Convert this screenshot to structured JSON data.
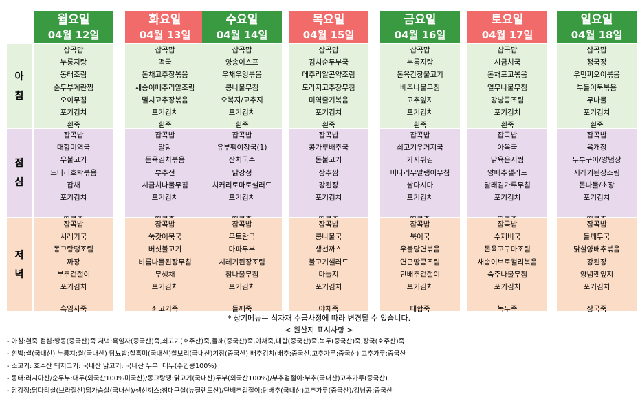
{
  "colors": {
    "weekday_header": "#3a9a42",
    "weekend_header": "#f26b6b",
    "breakfast_bg": "#e4f2dd",
    "lunch_bg": "#e8d9ec",
    "dinner_bg": "#fbdcc7"
  },
  "days": [
    {
      "name": "월요일",
      "date": "04월 12일",
      "weekend": false,
      "breakfast": [
        "잡곡밥",
        "누룽지탕",
        "동태조림",
        "순두부계란찜",
        "오이무침",
        "포기김치",
        "흰죽"
      ],
      "lunch": [
        "잡곡밥",
        "대합미역국",
        "우불고기",
        "느타리호박볶음",
        "잡채",
        "포기김치",
        "땅콩죽"
      ],
      "dinner": [
        "잡곡밥",
        "시래기국",
        "동그랑땡조림",
        "짜장",
        "부추겉절이",
        "포기김치",
        "흑임자죽"
      ]
    },
    {
      "name": "화요일",
      "date": "04월 13일",
      "weekend": true,
      "breakfast": [
        "잡곡밥",
        "떡국",
        "돈채고추장볶음",
        "새송이메추리알조림",
        "멸치고추장볶음",
        "포기김치",
        "흰죽"
      ],
      "lunch": [
        "잡곡밥",
        "알탕",
        "돈육김치볶음",
        "부추전",
        "시금치나물무침",
        "포기김치",
        "땅콩죽"
      ],
      "dinner": [
        "잡곡밥",
        "쑥갓어묵국",
        "버섯불고기",
        "비름나물된장무침",
        "무생채",
        "포기김치",
        "쇠고기죽"
      ]
    },
    {
      "name": "수요일",
      "date": "04월 14일",
      "weekend": false,
      "breakfast": [
        "잡곡밥",
        "양송이스프",
        "우채우엉볶음",
        "콩나물무침",
        "오복지/고추지",
        "포기김치",
        "흰죽"
      ],
      "lunch": [
        "잡곡밥",
        "유부팽이장국(1)",
        "잔치국수",
        "닭강정",
        "치커리토마토샐러드",
        "포기김치",
        "땅콩죽"
      ],
      "dinner": [
        "잡곡밥",
        "우토란국",
        "마파두부",
        "시레기된장조림",
        "참나물무침",
        "포기김치",
        "들깨죽"
      ]
    },
    {
      "name": "목요일",
      "date": "04월 15일",
      "weekend": true,
      "breakfast": [
        "잡곡밥",
        "김치순두부국",
        "메추리알곤약조림",
        "도라지고추장무침",
        "미역줄기볶음",
        "포기김치",
        "흰죽"
      ],
      "lunch": [
        "잡곡밥",
        "콩가루배추국",
        "돈불고기",
        "상추쌈",
        "강된장",
        "포기김치",
        "땅콩죽"
      ],
      "dinner": [
        "잡곡밥",
        "콩나물국",
        "생선까스",
        "불고기샐러드",
        "마늘지",
        "포기김치",
        "야채죽"
      ]
    },
    {
      "name": "금요일",
      "date": "04월 16일",
      "weekend": false,
      "breakfast": [
        "잡곡밥",
        "누룽지탕",
        "돈육간장불고기",
        "배추나물무침",
        "고추잎지",
        "포기김치",
        "흰죽"
      ],
      "lunch": [
        "잡곡밥",
        "쇠고기우거지국",
        "가지튀김",
        "미나리무말랭이무침",
        "쌈다시마",
        "포기김치",
        "땅콩죽"
      ],
      "dinner": [
        "잡곡밥",
        "북어국",
        "우불당면볶음",
        "연근땅콩조림",
        "단배추겉절이",
        "포기김치",
        "대합죽"
      ]
    },
    {
      "name": "토요일",
      "date": "04월 17일",
      "weekend": true,
      "breakfast": [
        "잡곡밥",
        "시금치국",
        "돈채표고볶음",
        "열무나물무침",
        "강낭콩조림",
        "포기김치",
        "흰죽"
      ],
      "lunch": [
        "잡곡밥",
        "아욱국",
        "닭육은지찜",
        "양배추샐러드",
        "달래김가루무침",
        "포기김치",
        "땅콩죽"
      ],
      "dinner": [
        "잡곡밥",
        "수제비국",
        "돈육고구마조림",
        "새송이브로컬리볶음",
        "숙주나물무침",
        "포기김치",
        "녹두죽"
      ]
    },
    {
      "name": "일요일",
      "date": "04월 18일",
      "weekend": false,
      "breakfast": [
        "잡곡밥",
        "청국장",
        "우민찌오이볶음",
        "부들어묵볶음",
        "무나물",
        "포기김치",
        "흰죽"
      ],
      "lunch": [
        "잡곡밥",
        "육개장",
        "두부구이/양념장",
        "시래기된장조림",
        "돈나물/초장",
        "포기김치",
        "땅콩죽"
      ],
      "dinner": [
        "잡곡밥",
        "들깨무국",
        "닭살양배추볶음",
        "강된장",
        "양념깻잎지",
        "포기김치",
        "장국죽"
      ]
    }
  ],
  "meals": [
    {
      "key": "breakfast",
      "chars": [
        "아",
        "침"
      ]
    },
    {
      "key": "lunch",
      "chars": [
        "점",
        "심"
      ]
    },
    {
      "key": "dinner",
      "chars": [
        "저",
        "녁"
      ]
    }
  ],
  "notice": "* 상기메뉴는 식자재 수급사정에 따라 변경될 수 있습니다.",
  "origin_title": "< 원산지 표시사항 >",
  "origin_lines": [
    "- 아침:흰죽  점심:땅콩(중국산)죽  저녁:흑임자(중국산)죽,쇠고기(호주산)죽,들깨(중국산)죽,야채죽,대합(중국산)죽,녹두(중국산)죽,장국(호주산)죽",
    "- 흰밥:쌀(국내산)  누룽지:쌀(국내산)  당뇨밥:찰흑미(국내산)찰보리(국내산)기장(중국산)  배추김치(배추:중국산,고추가루:중국산)  고추가루:중국산",
    "- 소고기: 호주산  돼지고기: 국내산  닭고기: 국내산  두부: 대두(수입콩100%)",
    "- 동태:러시아산/순두부:대두(외국산100%미국산)/동그랑땡:닭고기(국내산)두부(외국산100%)/부추겉절이:부추(국내산)고추가루(중국산)",
    "- 닭강정:닭다리살(브라질산)닭가슴살(국내산)/생선까스:청대구살(뉴질랜드산)/단배추겉절이:단배추(국내산)고추가루(중국산)/강낭콩:중국산"
  ]
}
